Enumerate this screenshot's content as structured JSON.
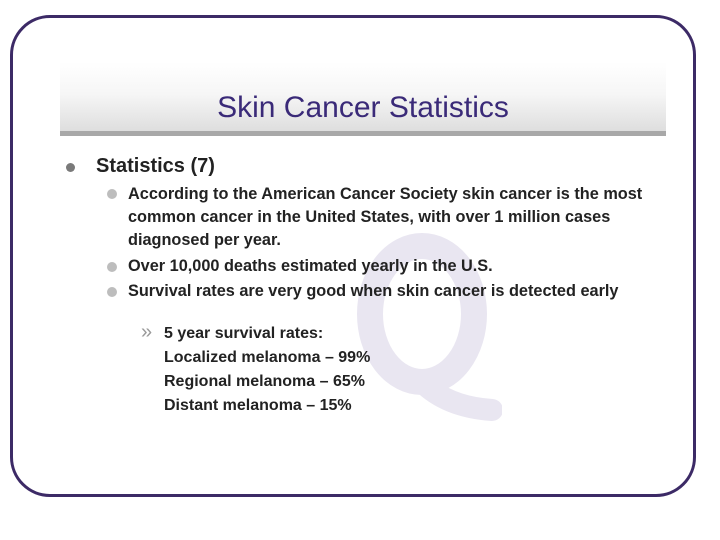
{
  "slide": {
    "title": "Skin Cancer Statistics",
    "accent_color": "#3c2a66",
    "title_color": "#3a2a78",
    "watermark_icon": "q-letter-watermark"
  },
  "content": {
    "heading": "Statistics (7)",
    "bullets": [
      "According to the American Cancer Society skin cancer is the most common cancer in the United States, with over 1 million cases diagnosed per year.",
      "Over 10,000 deaths estimated yearly in the U.S.",
      "Survival rates are very good when skin cancer is detected early"
    ],
    "sub_bullet_marker": "»",
    "sub_bullet_lines": [
      "5 year survival rates:",
      "Localized melanoma – 99%",
      "Regional melanoma – 65%",
      "Distant melanoma – 15%"
    ]
  }
}
